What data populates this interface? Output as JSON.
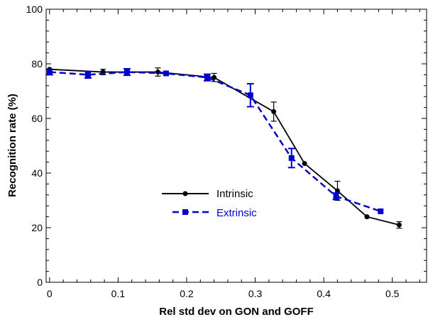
{
  "chart_data": {
    "type": "line",
    "title": "",
    "xlabel": "Rel std dev on GON and GOFF",
    "ylabel": "Recognition rate (%)",
    "xlim": [
      -0.005,
      0.55
    ],
    "ylim": [
      0,
      100
    ],
    "xticks": [
      0,
      0.1,
      0.2,
      0.3,
      0.4,
      0.5
    ],
    "xtick_labels": [
      "0",
      "0.1",
      "0.2",
      "0.3",
      "0.4",
      "0.5"
    ],
    "yticks": [
      0,
      20,
      40,
      60,
      80,
      100
    ],
    "ytick_labels": [
      "0",
      "20",
      "40",
      "60",
      "80",
      "100"
    ],
    "grid": false,
    "legend_position": "center",
    "series": [
      {
        "name": "Intrinsic",
        "color": "#000000",
        "marker": "circle",
        "line_style": "solid",
        "x": [
          0,
          0.078,
          0.158,
          0.24,
          0.327,
          0.372,
          0.42,
          0.463,
          0.51
        ],
        "y": [
          78,
          77,
          77,
          75,
          62.5,
          43.5,
          33.5,
          24,
          21
        ],
        "err": [
          0,
          1,
          1.5,
          1.5,
          3.5,
          0,
          3.5,
          0,
          1.2
        ]
      },
      {
        "name": "Extrinsic",
        "color": "#0000cc",
        "marker": "square",
        "line_style": "dashed",
        "x": [
          0,
          0.056,
          0.113,
          0.17,
          0.23,
          0.293,
          0.353,
          0.418,
          0.483
        ],
        "y": [
          77,
          76,
          77,
          76.5,
          75,
          68.5,
          45.5,
          31.5,
          26
        ],
        "err": [
          1,
          1.2,
          1.2,
          0,
          1.2,
          4.2,
          3.5,
          1.2,
          0
        ]
      }
    ]
  }
}
